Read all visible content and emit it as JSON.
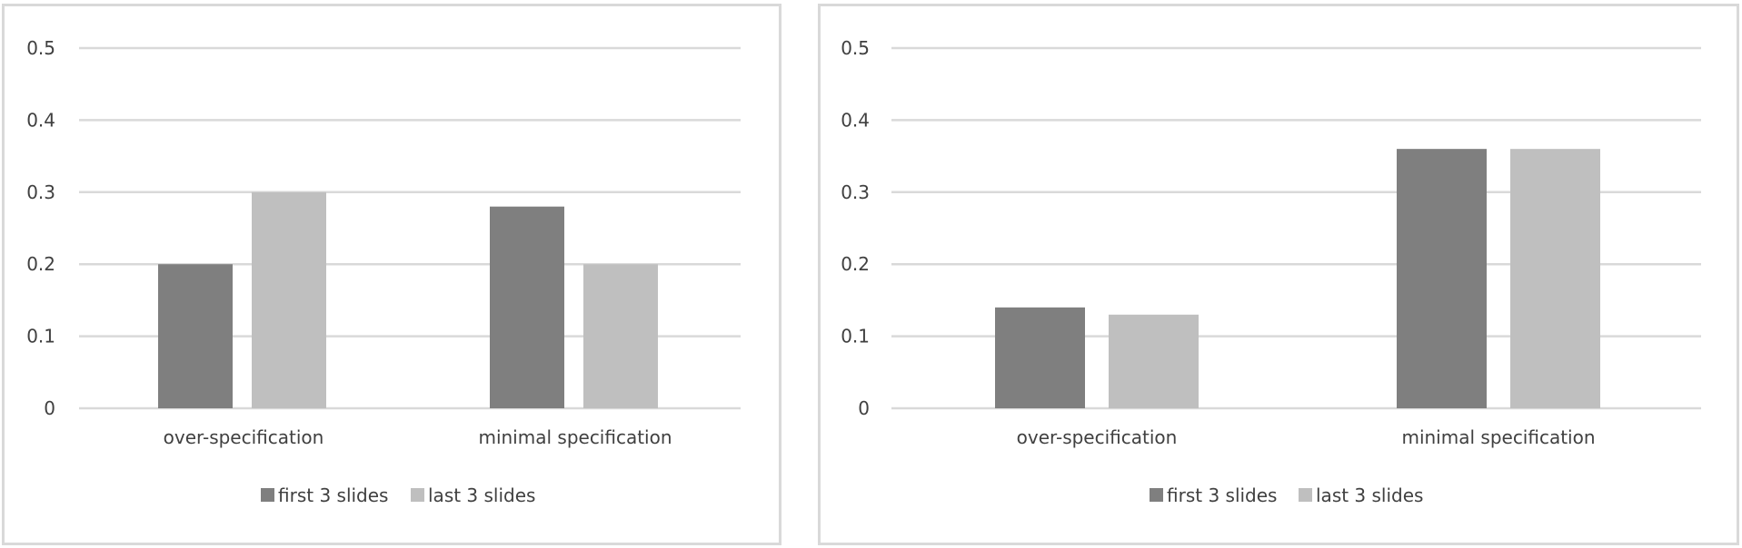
{
  "colors": {
    "first": "#7f7f7f",
    "last": "#bfbfbf",
    "grid": "#d9d9d9",
    "text": "#404040"
  },
  "chart_data": [
    {
      "type": "bar",
      "categories": [
        "over-specification",
        "minimal specification"
      ],
      "series": [
        {
          "name": "first 3 slides",
          "values": [
            0.2,
            0.28
          ]
        },
        {
          "name": "last 3 slides",
          "values": [
            0.3,
            0.2
          ]
        }
      ],
      "yticks": [
        "0",
        "0.1",
        "0.2",
        "0.3",
        "0.4",
        "0.5"
      ],
      "ylim": [
        0,
        0.5
      ],
      "grid": true,
      "legend": "bottom"
    },
    {
      "type": "bar",
      "categories": [
        "over-specification",
        "minimal specification"
      ],
      "series": [
        {
          "name": "first 3 slides",
          "values": [
            0.14,
            0.36
          ]
        },
        {
          "name": "last 3 slides",
          "values": [
            0.13,
            0.36
          ]
        }
      ],
      "yticks": [
        "0",
        "0.1",
        "0.2",
        "0.3",
        "0.4",
        "0.5"
      ],
      "ylim": [
        0,
        0.5
      ],
      "grid": true,
      "legend": "bottom"
    }
  ]
}
